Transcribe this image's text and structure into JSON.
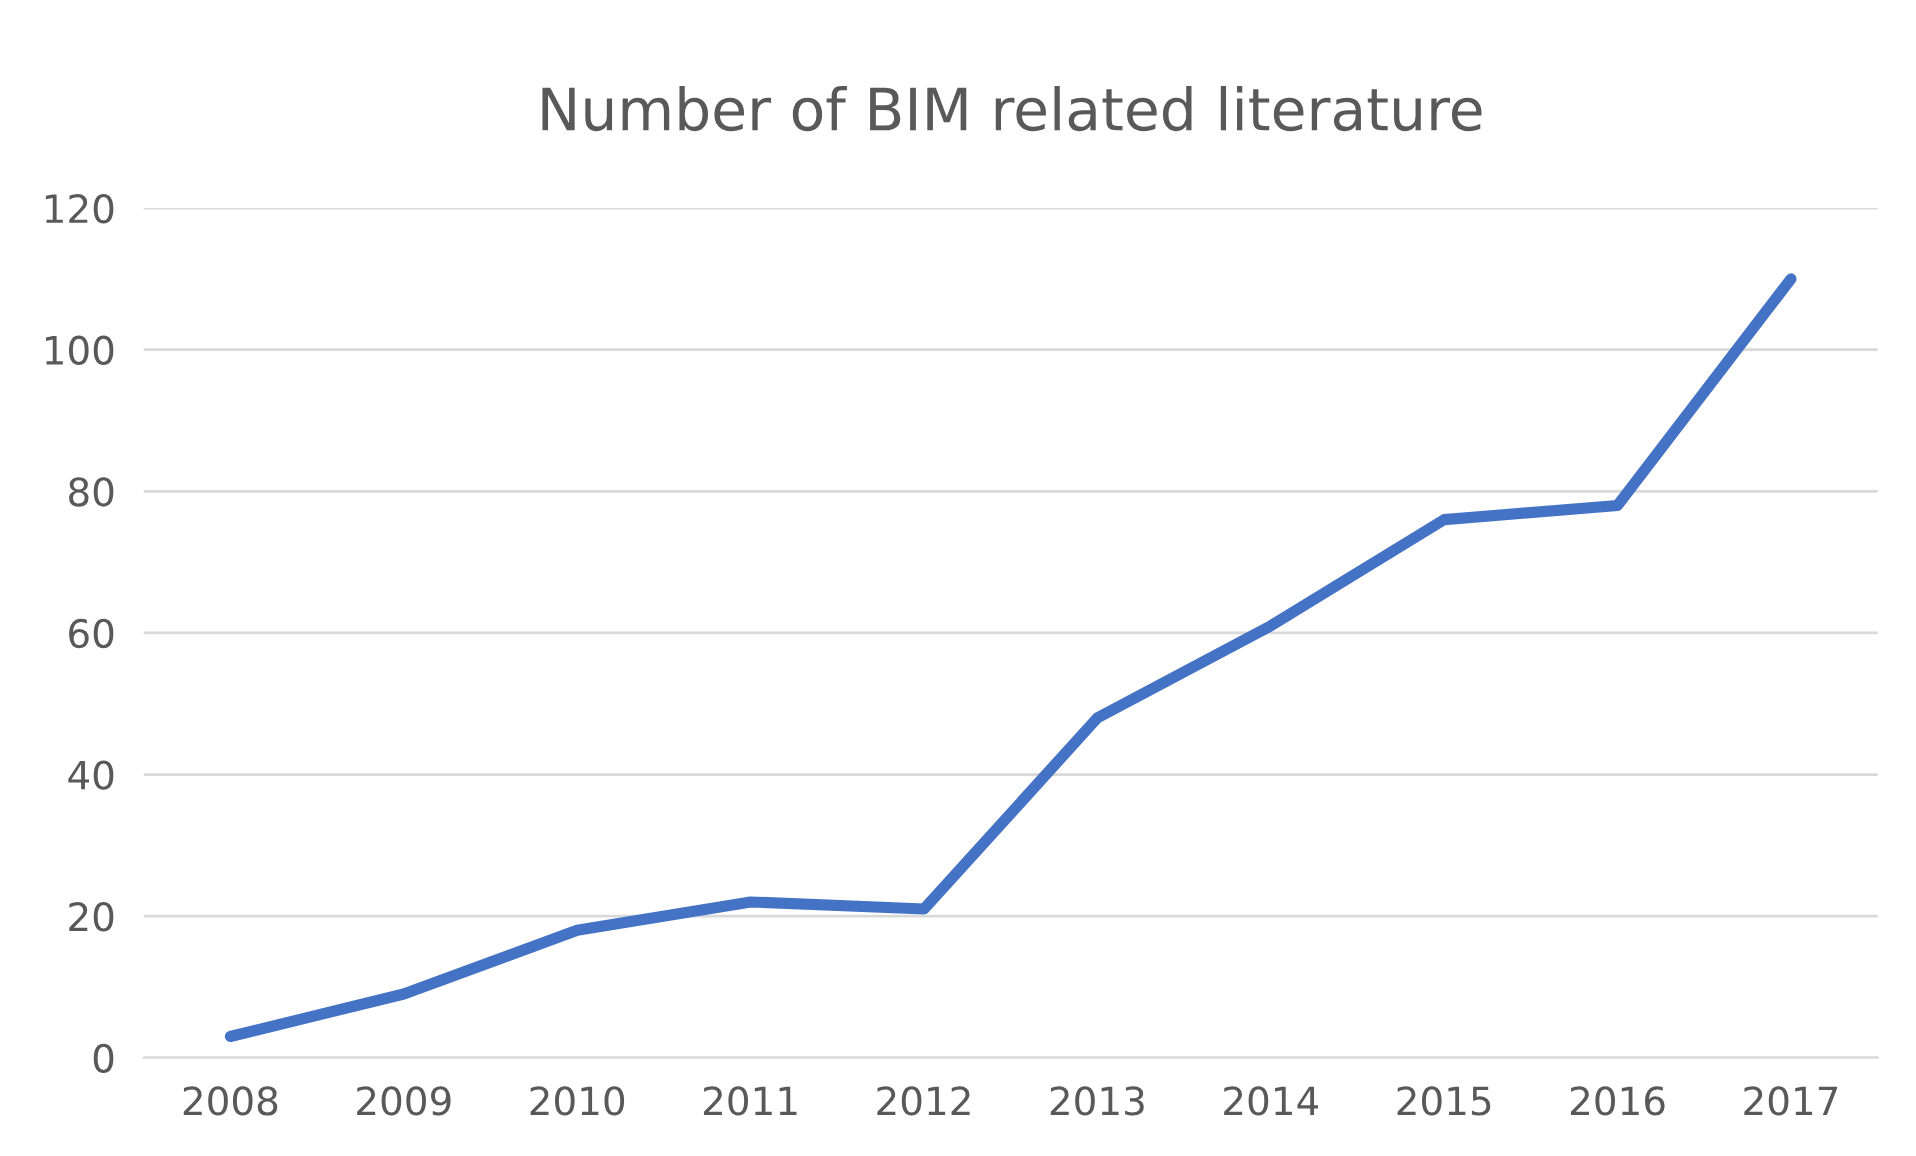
{
  "chart_data": {
    "type": "line",
    "title": "Number of BIM related literature",
    "categories": [
      "2008",
      "2009",
      "2010",
      "2011",
      "2012",
      "2013",
      "2014",
      "2015",
      "2016",
      "2017"
    ],
    "series": [
      {
        "color": "#4472c4",
        "values": [
          3,
          9,
          18,
          22,
          21,
          48,
          61,
          76,
          78,
          110
        ]
      }
    ],
    "ylim": [
      0,
      120
    ],
    "yticks": [
      0,
      20,
      40,
      60,
      80,
      100,
      120
    ],
    "grid": "y",
    "marker": "none",
    "line_style": "solid"
  }
}
